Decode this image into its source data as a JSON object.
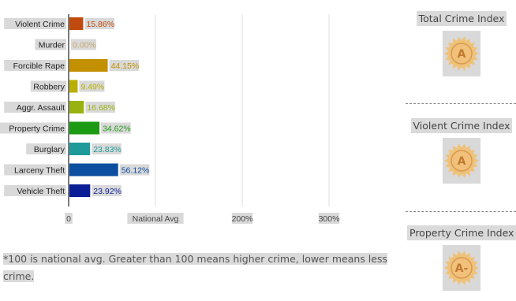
{
  "chart_data": {
    "type": "bar",
    "orientation": "horizontal",
    "categories": [
      "Violent Crime",
      "Murder",
      "Forcible Rape",
      "Robbery",
      "Aggr. Assault",
      "Property Crime",
      "Burglary",
      "Larceny Theft",
      "Vehicle Theft"
    ],
    "values": [
      15.86,
      0.0,
      44.15,
      9.49,
      16.68,
      34.62,
      23.83,
      56.12,
      23.92
    ],
    "value_labels": [
      "15.86%",
      "0.00%",
      "44.15%",
      "9.49%",
      "16.68%",
      "34.62%",
      "23.83%",
      "56.12%",
      "23.92%"
    ],
    "colors": [
      "#c04a0e",
      "#c9a66b",
      "#c29000",
      "#b8b000",
      "#9ab20f",
      "#1d9a14",
      "#1e9a9a",
      "#0c4ea0",
      "#0a1f96"
    ],
    "x_ticks": [
      {
        "value": 0,
        "label": "0"
      },
      {
        "value": 100,
        "label": "National Avg"
      },
      {
        "value": 200,
        "label": "200%"
      },
      {
        "value": 300,
        "label": "300%"
      }
    ],
    "xlim": [
      0,
      400
    ],
    "grid": true
  },
  "footnote": "*100 is national avg. Greater than 100 means higher crime, lower means less crime.",
  "indexes": [
    {
      "title": "Total Crime Index",
      "grade": "A"
    },
    {
      "title": "Violent Crime Index",
      "grade": "A"
    },
    {
      "title": "Property Crime Index",
      "grade": "A-"
    }
  ]
}
